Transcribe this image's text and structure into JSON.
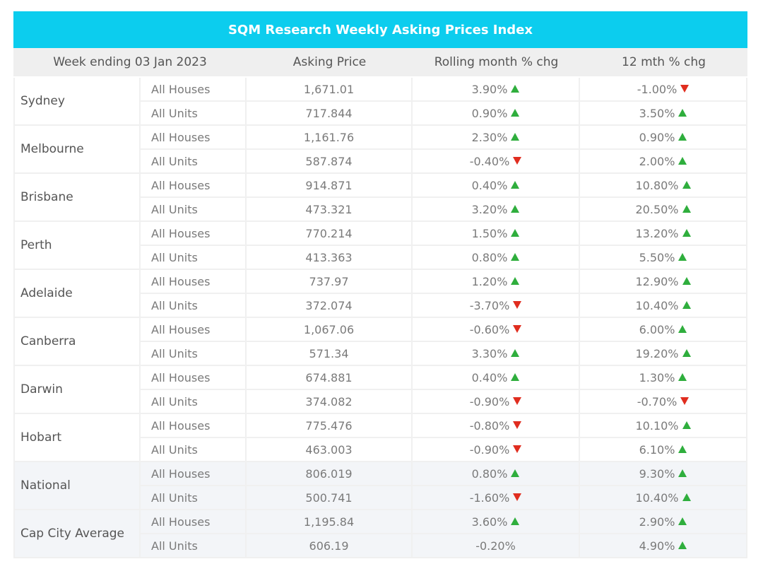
{
  "title": "SQM Research Weekly Asking Prices Index",
  "headers": [
    "Week ending 03 Jan 2023",
    "Asking Price",
    "Rolling month % chg",
    "12 mth % chg"
  ],
  "rows": [
    {
      "city": "Sydney",
      "shade": false,
      "items": [
        {
          "type": "All Houses",
          "price": "1,671.01",
          "roll": "3.90%",
          "roll_dir": "up",
          "yr": "-1.00%",
          "yr_dir": "down"
        },
        {
          "type": "All Units",
          "price": "717.844",
          "roll": "0.90%",
          "roll_dir": "up",
          "yr": "3.50%",
          "yr_dir": "up"
        }
      ]
    },
    {
      "city": "Melbourne",
      "shade": false,
      "items": [
        {
          "type": "All Houses",
          "price": "1,161.76",
          "roll": "2.30%",
          "roll_dir": "up",
          "yr": "0.90%",
          "yr_dir": "up"
        },
        {
          "type": "All Units",
          "price": "587.874",
          "roll": "-0.40%",
          "roll_dir": "down",
          "yr": "2.00%",
          "yr_dir": "up"
        }
      ]
    },
    {
      "city": "Brisbane",
      "shade": false,
      "items": [
        {
          "type": "All Houses",
          "price": "914.871",
          "roll": "0.40%",
          "roll_dir": "up",
          "yr": "10.80%",
          "yr_dir": "up"
        },
        {
          "type": "All Units",
          "price": "473.321",
          "roll": "3.20%",
          "roll_dir": "up",
          "yr": "20.50%",
          "yr_dir": "up"
        }
      ]
    },
    {
      "city": "Perth",
      "shade": false,
      "items": [
        {
          "type": "All Houses",
          "price": "770.214",
          "roll": "1.50%",
          "roll_dir": "up",
          "yr": "13.20%",
          "yr_dir": "up"
        },
        {
          "type": "All Units",
          "price": "413.363",
          "roll": "0.80%",
          "roll_dir": "up",
          "yr": "5.50%",
          "yr_dir": "up"
        }
      ]
    },
    {
      "city": "Adelaide",
      "shade": false,
      "items": [
        {
          "type": "All Houses",
          "price": "737.97",
          "roll": "1.20%",
          "roll_dir": "up",
          "yr": "12.90%",
          "yr_dir": "up"
        },
        {
          "type": "All Units",
          "price": "372.074",
          "roll": "-3.70%",
          "roll_dir": "down",
          "yr": "10.40%",
          "yr_dir": "up"
        }
      ]
    },
    {
      "city": "Canberra",
      "shade": false,
      "items": [
        {
          "type": "All Houses",
          "price": "1,067.06",
          "roll": "-0.60%",
          "roll_dir": "down",
          "yr": "6.00%",
          "yr_dir": "up"
        },
        {
          "type": "All Units",
          "price": "571.34",
          "roll": "3.30%",
          "roll_dir": "up",
          "yr": "19.20%",
          "yr_dir": "up"
        }
      ]
    },
    {
      "city": "Darwin",
      "shade": false,
      "items": [
        {
          "type": "All Houses",
          "price": "674.881",
          "roll": "0.40%",
          "roll_dir": "up",
          "yr": "1.30%",
          "yr_dir": "up"
        },
        {
          "type": "All Units",
          "price": "374.082",
          "roll": "-0.90%",
          "roll_dir": "down",
          "yr": "-0.70%",
          "yr_dir": "down"
        }
      ]
    },
    {
      "city": "Hobart",
      "shade": false,
      "items": [
        {
          "type": "All Houses",
          "price": "775.476",
          "roll": "-0.80%",
          "roll_dir": "down",
          "yr": "10.10%",
          "yr_dir": "up"
        },
        {
          "type": "All Units",
          "price": "463.003",
          "roll": "-0.90%",
          "roll_dir": "down",
          "yr": "6.10%",
          "yr_dir": "up"
        }
      ]
    },
    {
      "city": "National",
      "shade": true,
      "items": [
        {
          "type": "All Houses",
          "price": "806.019",
          "roll": "0.80%",
          "roll_dir": "up",
          "yr": "9.30%",
          "yr_dir": "up"
        },
        {
          "type": "All Units",
          "price": "500.741",
          "roll": "-1.60%",
          "roll_dir": "down",
          "yr": "10.40%",
          "yr_dir": "up"
        }
      ]
    },
    {
      "city": "Cap City Average",
      "shade": true,
      "items": [
        {
          "type": "All Houses",
          "price": "1,195.84",
          "roll": "3.60%",
          "roll_dir": "up",
          "yr": "2.90%",
          "yr_dir": "up"
        },
        {
          "type": "All Units",
          "price": "606.19",
          "roll": "-0.20%",
          "roll_dir": "none",
          "yr": "4.90%",
          "yr_dir": "up"
        }
      ]
    }
  ],
  "colors": {
    "banner": "#0ccdee",
    "up": "#2fae3d",
    "down": "#e02d1f"
  }
}
